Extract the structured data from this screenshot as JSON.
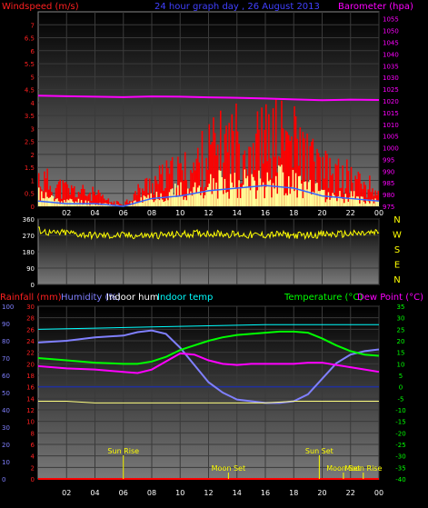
{
  "chart_data": [
    {
      "type": "bar",
      "title": "24 hour graph day , 26 August 2013",
      "left_axis_label": "Windspeed (m/s)",
      "right_axis_label": "Barometer (hpa)",
      "x_ticks": [
        "02",
        "04",
        "06",
        "08",
        "10",
        "12",
        "14",
        "16",
        "18",
        "20",
        "22",
        "00"
      ],
      "left_ticks": [
        "0",
        "0.5",
        "1",
        "1.5",
        "2",
        "2.5",
        "3",
        "3.5",
        "4",
        "4.5",
        "5",
        "5.5",
        "6",
        "6.5",
        "7"
      ],
      "right_ticks": [
        "975",
        "980",
        "985",
        "990",
        "995",
        "1000",
        "1005",
        "1010",
        "1015",
        "1020",
        "1025",
        "1030",
        "1035",
        "1040",
        "1045",
        "1050",
        "1055"
      ],
      "left_ylim": [
        0,
        7.5
      ],
      "right_ylim": [
        975,
        1058
      ],
      "series": [
        {
          "name": "Barometer (hpa)",
          "color": "#ff00ff",
          "x": [
            0,
            2,
            4,
            6,
            8,
            10,
            12,
            14,
            16,
            18,
            20,
            22,
            24
          ],
          "values": [
            1022.2,
            1022.0,
            1021.8,
            1021.6,
            1021.9,
            1021.8,
            1021.5,
            1021.3,
            1021.0,
            1020.6,
            1020.3,
            1020.5,
            1020.4
          ]
        },
        {
          "name": "Gust",
          "color": "#ff0000",
          "x": [
            0,
            1,
            2,
            3,
            4,
            5,
            6,
            7,
            8,
            9,
            10,
            11,
            12,
            13,
            14,
            15,
            16,
            17,
            18,
            19,
            20,
            21,
            22,
            23,
            24
          ],
          "values": [
            1.2,
            0.9,
            0.7,
            0.6,
            0.5,
            0.2,
            0.1,
            0.6,
            1.0,
            1.2,
            1.4,
            1.6,
            2.3,
            2.5,
            2.8,
            2.6,
            2.7,
            2.9,
            2.7,
            2.0,
            1.5,
            1.3,
            1.2,
            0.9,
            0.6
          ]
        },
        {
          "name": "Wind",
          "color": "#ffff99",
          "x": [
            0,
            1,
            2,
            3,
            4,
            5,
            6,
            7,
            8,
            9,
            10,
            11,
            12,
            13,
            14,
            15,
            16,
            17,
            18,
            19,
            20,
            21,
            22,
            23,
            24
          ],
          "values": [
            0.5,
            0.3,
            0.2,
            0.2,
            0.1,
            0.1,
            0.0,
            0.2,
            0.4,
            0.5,
            0.6,
            0.6,
            0.8,
            0.9,
            1.0,
            0.9,
            1.0,
            1.1,
            1.0,
            0.7,
            0.5,
            0.4,
            0.4,
            0.3,
            0.2
          ]
        },
        {
          "name": "Average wind",
          "color": "#3366ff",
          "x": [
            0,
            2,
            4,
            6,
            8,
            10,
            12,
            14,
            16,
            18,
            20,
            22,
            24
          ],
          "values": [
            0.2,
            0.1,
            0.1,
            0.0,
            0.3,
            0.4,
            0.6,
            0.7,
            0.8,
            0.7,
            0.4,
            0.3,
            0.2
          ]
        }
      ]
    },
    {
      "type": "line",
      "x_ticks": [],
      "left_ticks": [
        "0",
        "90",
        "180",
        "270",
        "360"
      ],
      "right_ticks": [
        "N",
        "W",
        "S",
        "E",
        "N"
      ],
      "ylim": [
        0,
        360
      ],
      "series": [
        {
          "name": "Wind direction",
          "color": "#ffff00",
          "x": [
            0,
            1,
            2,
            3,
            4,
            5,
            6,
            7,
            8,
            9,
            10,
            11,
            12,
            13,
            14,
            15,
            16,
            17,
            18,
            19,
            20,
            21,
            22,
            23,
            24
          ],
          "values": [
            300,
            280,
            285,
            275,
            270,
            268,
            270,
            268,
            270,
            272,
            275,
            280,
            282,
            278,
            275,
            270,
            272,
            275,
            270,
            272,
            275,
            276,
            278,
            280,
            285
          ]
        }
      ]
    },
    {
      "type": "line",
      "labels": {
        "rainfall": "Rainfall (mm)",
        "humidity": "Humidity (%)",
        "indoor_hum": "Indoor hum",
        "indoor_temp": "Indoor temp",
        "temperature": "Temperature (°C)",
        "dew_point": "Dew Point (°C)"
      },
      "x_ticks": [
        "02",
        "04",
        "06",
        "08",
        "10",
        "12",
        "14",
        "16",
        "18",
        "20",
        "22",
        "00"
      ],
      "humidity_ticks": [
        "0",
        "10",
        "20",
        "30",
        "40",
        "50",
        "60",
        "70",
        "80",
        "90",
        "100"
      ],
      "rain_ticks": [
        "0",
        "2",
        "4",
        "6",
        "8",
        "10",
        "12",
        "14",
        "16",
        "18",
        "20",
        "22",
        "24",
        "26",
        "28",
        "30"
      ],
      "temp_ticks": [
        "35",
        "30",
        "25",
        "20",
        "15",
        "10",
        "5",
        "0",
        "-5",
        "-10",
        "-15",
        "-20",
        "-25",
        "-30",
        "-35",
        "-40"
      ],
      "annotations": [
        "Sun Rise",
        "Sun Set",
        "Moon Set",
        "Moon Set",
        "Moon Rise"
      ],
      "annotation_hours": [
        6.0,
        19.8,
        13.4,
        21.5,
        22.9
      ],
      "humidity_ylim": [
        0,
        100
      ],
      "temp_ylim": [
        -40,
        35
      ],
      "series": [
        {
          "name": "Humidity (%)",
          "color": "#8080ff",
          "x": [
            0,
            2,
            4,
            6,
            7,
            8,
            9,
            10,
            11,
            12,
            13,
            14,
            15,
            16,
            17,
            18,
            19,
            20,
            21,
            22,
            23,
            24
          ],
          "values": [
            79,
            80,
            82,
            83,
            85,
            86,
            84,
            76,
            66,
            56,
            50,
            46,
            45,
            44,
            44,
            45,
            49,
            58,
            67,
            72,
            74,
            75
          ]
        },
        {
          "name": "Temperature (°C)",
          "color": "#00ff00",
          "x": [
            0,
            2,
            4,
            6,
            7,
            8,
            9,
            10,
            11,
            12,
            13,
            14,
            15,
            16,
            17,
            18,
            19,
            20,
            21,
            22,
            23,
            24
          ],
          "values": [
            12.5,
            11.5,
            10.5,
            10.0,
            10.0,
            11.0,
            13.0,
            16.0,
            18.0,
            20.0,
            21.5,
            22.5,
            23.0,
            23.5,
            24.0,
            24.0,
            23.5,
            21.0,
            18.0,
            15.5,
            14.0,
            13.5
          ]
        },
        {
          "name": "Dew Point (°C)",
          "color": "#ff00ff",
          "x": [
            0,
            2,
            4,
            6,
            7,
            8,
            9,
            10,
            11,
            12,
            13,
            14,
            15,
            16,
            17,
            18,
            19,
            20,
            21,
            22,
            23,
            24
          ],
          "values": [
            9.0,
            8.0,
            7.5,
            6.5,
            6.0,
            7.5,
            11.0,
            14.5,
            14.0,
            11.5,
            10.0,
            9.5,
            10.0,
            10.0,
            10.0,
            10.0,
            10.5,
            10.5,
            9.5,
            8.5,
            7.5,
            6.5
          ]
        },
        {
          "name": "Indoor temp",
          "color": "#00ffff",
          "x": [
            0,
            4,
            8,
            12,
            16,
            20,
            24
          ],
          "values": [
            25.0,
            25.5,
            26.0,
            26.5,
            27.0,
            27.0,
            27.0
          ]
        },
        {
          "name": "Indoor hum",
          "color": "#ffff80",
          "x": [
            0,
            2,
            4,
            6,
            8,
            10,
            12,
            14,
            16,
            18,
            20,
            22,
            24
          ],
          "values": [
            45,
            45,
            44,
            44,
            44,
            44,
            44,
            44,
            44,
            45,
            45,
            45,
            45
          ]
        },
        {
          "name": "Rainfall (mm)",
          "color": "#ff0000",
          "x": [
            0,
            24
          ],
          "values": [
            0,
            0
          ]
        }
      ]
    }
  ]
}
